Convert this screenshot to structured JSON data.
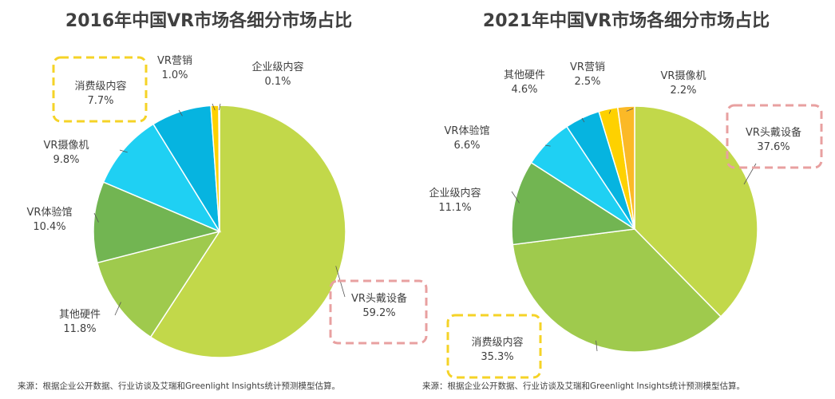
{
  "chart_data": [
    {
      "type": "pie",
      "title": "2016年中国VR市场各细分市场占比",
      "unit": "%",
      "slices": [
        {
          "label": "VR头戴设备",
          "value": 59.2,
          "value_text": "59.2%",
          "color": "#c2d84a"
        },
        {
          "label": "其他硬件",
          "value": 11.8,
          "value_text": "11.8%",
          "color": "#9fca4d"
        },
        {
          "label": "VR体验馆",
          "value": 10.4,
          "value_text": "10.4%",
          "color": "#72b552"
        },
        {
          "label": "VR摄像机",
          "value": 9.8,
          "value_text": "9.8%",
          "color": "#1fd0f3"
        },
        {
          "label": "消费级内容",
          "value": 7.7,
          "value_text": "7.7%",
          "color": "#06b4e0"
        },
        {
          "label": "VR营销",
          "value": 1.0,
          "value_text": "1.0%",
          "color": "#fed100"
        },
        {
          "label": "企业级内容",
          "value": 0.1,
          "value_text": "0.1%",
          "color": "#fbb927"
        }
      ],
      "highlighted": [
        "VR头戴设备",
        "消费级内容"
      ],
      "source": "来源：根据企业公开数据、行业访谈及艾瑞和Greenlight Insights统计预测模型估算。"
    },
    {
      "type": "pie",
      "title": "2021年中国VR市场各细分市场占比",
      "unit": "%",
      "slices": [
        {
          "label": "VR头戴设备",
          "value": 37.6,
          "value_text": "37.6%",
          "color": "#c2d84a"
        },
        {
          "label": "消费级内容",
          "value": 35.3,
          "value_text": "35.3%",
          "color": "#9fca4d"
        },
        {
          "label": "企业级内容",
          "value": 11.1,
          "value_text": "11.1%",
          "color": "#72b552"
        },
        {
          "label": "VR体验馆",
          "value": 6.6,
          "value_text": "6.6%",
          "color": "#1fd0f3"
        },
        {
          "label": "其他硬件",
          "value": 4.6,
          "value_text": "4.6%",
          "color": "#06b4e0"
        },
        {
          "label": "VR营销",
          "value": 2.5,
          "value_text": "2.5%",
          "color": "#fed100"
        },
        {
          "label": "VR摄像机",
          "value": 2.2,
          "value_text": "2.2%",
          "color": "#fbb927"
        }
      ],
      "highlighted": [
        "VR头戴设备",
        "消费级内容"
      ],
      "source": "来源：根据企业公开数据、行业访谈及艾瑞和Greenlight Insights统计预测模型估算。"
    }
  ],
  "highlight_colors": {
    "VR头戴设备": "#e8a0a0",
    "消费级内容": "#f5d327"
  }
}
